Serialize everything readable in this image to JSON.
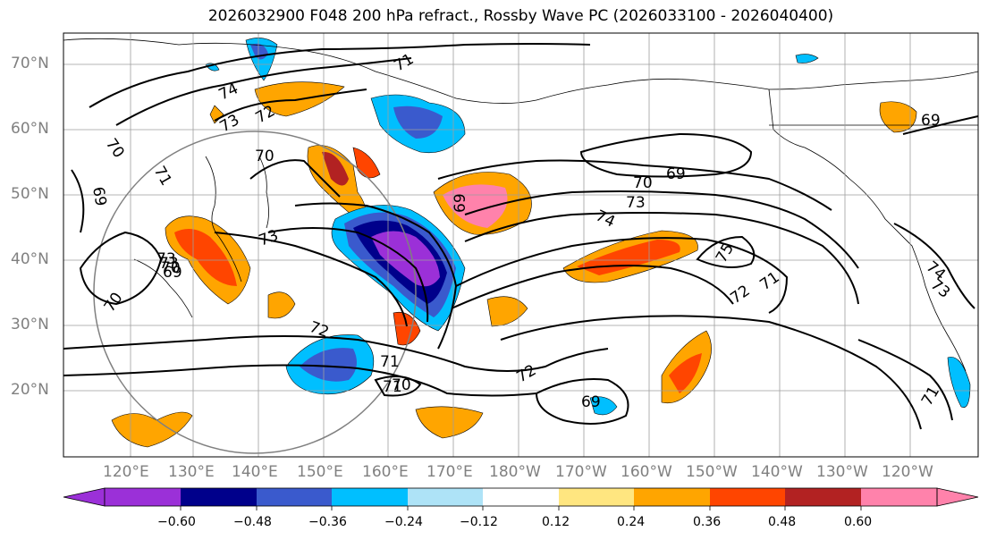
{
  "title": "2026032900 F048 200 hPa refract., Rossby Wave PC (2026033100 - 2026040400)",
  "lat_labels": [
    "70°N",
    "60°N",
    "50°N",
    "40°N",
    "30°N",
    "20°N"
  ],
  "lon_labels": [
    "120°E",
    "130°E",
    "140°E",
    "150°E",
    "160°E",
    "170°E",
    "180°W",
    "170°W",
    "160°W",
    "150°W",
    "140°W",
    "130°W",
    "120°W"
  ],
  "colorbar": {
    "colors": [
      "#9b30d8",
      "#00008b",
      "#3a5acd",
      "#00bfff",
      "#aee3f7",
      "#ffffff",
      "#ffe680",
      "#ffa500",
      "#ff4500",
      "#b22222",
      "#ff82ab"
    ],
    "tick_labels": [
      "−0.60",
      "−0.48",
      "−0.36",
      "−0.24",
      "−0.12",
      "0.12",
      "0.24",
      "0.36",
      "0.48",
      "0.60"
    ],
    "extend": "both"
  },
  "contour_labels": [
    "71",
    "74",
    "73",
    "72",
    "70",
    "71",
    "69",
    "70",
    "73",
    "72",
    "70",
    "69",
    "74",
    "73",
    "69",
    "70",
    "69",
    "75",
    "72",
    "71",
    "72",
    "71",
    "71",
    "70",
    "74",
    "73",
    "71",
    "69",
    "73",
    "73",
    "70",
    "69"
  ]
}
